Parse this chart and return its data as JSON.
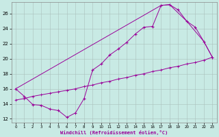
{
  "xlabel": "Windchill (Refroidissement éolien,°C)",
  "xlim": [
    -0.5,
    23.5
  ],
  "ylim": [
    11.5,
    27.5
  ],
  "xticks": [
    0,
    1,
    2,
    3,
    4,
    5,
    6,
    7,
    8,
    9,
    10,
    11,
    12,
    13,
    14,
    15,
    16,
    17,
    18,
    19,
    20,
    21,
    22,
    23
  ],
  "yticks": [
    12,
    14,
    16,
    18,
    20,
    22,
    24,
    26
  ],
  "background_color": "#c8eae4",
  "grid_color": "#aabfbc",
  "line_color": "#990099",
  "jagged_x": [
    0,
    1,
    2,
    3,
    4,
    5,
    6,
    7,
    8,
    9,
    10,
    11,
    12,
    13,
    14,
    15,
    16,
    17,
    18,
    19,
    20,
    21,
    22,
    23
  ],
  "jagged_y": [
    16.0,
    15.0,
    13.9,
    13.8,
    13.3,
    13.1,
    12.2,
    12.8,
    14.7,
    18.5,
    19.3,
    20.5,
    21.3,
    22.2,
    23.3,
    24.2,
    24.3,
    27.1,
    27.2,
    26.5,
    25.0,
    24.2,
    22.3,
    20.2
  ],
  "diag_x": [
    0,
    1,
    2,
    3,
    4,
    5,
    6,
    7,
    8,
    9,
    10,
    11,
    12,
    13,
    14,
    15,
    16,
    17,
    18,
    19,
    20,
    21,
    22,
    23
  ],
  "diag_y": [
    14.5,
    14.7,
    15.0,
    15.2,
    15.4,
    15.6,
    15.8,
    16.0,
    16.3,
    16.5,
    16.8,
    17.0,
    17.3,
    17.5,
    17.8,
    18.0,
    18.3,
    18.5,
    18.8,
    19.0,
    19.3,
    19.5,
    19.8,
    20.2
  ],
  "close_x": [
    0,
    17,
    18,
    20,
    22,
    23
  ],
  "close_y": [
    16.0,
    27.1,
    27.2,
    25.0,
    22.3,
    20.2
  ]
}
